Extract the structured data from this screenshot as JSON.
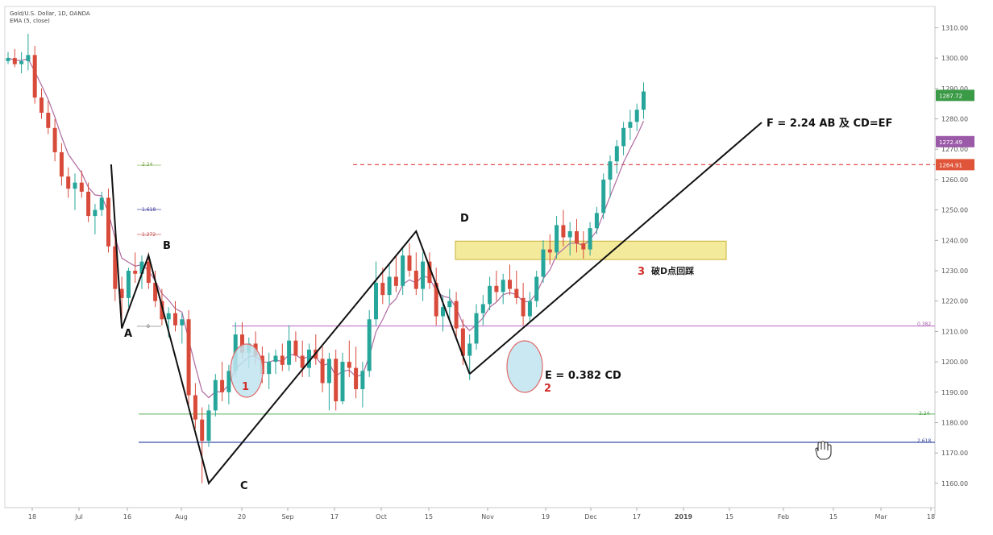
{
  "header": {
    "symbol_line": "Gold/U.S. Dollar, 1D, OANDA",
    "ema_line": "EMA (5, close)"
  },
  "colors": {
    "up": "#26a69a",
    "down": "#d84a3a",
    "ema": "#b06aa0",
    "pattern": "#111111",
    "zone_fill": "#f3ea9c",
    "zone_stroke": "#c9b23a",
    "red_dash": "#e05050",
    "pink_line": "#c98bd0",
    "green_line": "#7ac27a",
    "blue_line": "#4a5ab0",
    "circle_fill": "#bfe4ee",
    "circle_stroke": "#e06a6a"
  },
  "chart_data": {
    "type": "candlestick",
    "ylim": [
      1152,
      1317
    ],
    "y_ticks": [
      "1310.00",
      "1300.00",
      "1290.00",
      "1280.00",
      "1270.00",
      "1260.00",
      "1250.00",
      "1240.00",
      "1230.00",
      "1220.00",
      "1210.00",
      "1200.00",
      "1190.00",
      "1180.00",
      "1170.00",
      "1160.00"
    ],
    "x_ticks": [
      "18",
      "Jul",
      "16",
      "Aug",
      "20",
      "Sep",
      "17",
      "Oct",
      "15",
      "Nov",
      "19",
      "Dec",
      "17",
      "2019",
      "15",
      "Feb",
      "15",
      "Mar",
      "18"
    ],
    "price_badges": [
      {
        "value": 1287.72,
        "label": "1287.72",
        "color": "#3a9a45"
      },
      {
        "value": 1272.49,
        "label": "1272.49",
        "color": "#9b5aa8"
      },
      {
        "value": 1264.91,
        "label": "1264.91",
        "color": "#e0553a"
      }
    ],
    "levels": [
      {
        "name": "red-dash",
        "value": 1264.91,
        "style": "dashed"
      },
      {
        "name": "0.382",
        "label": "0.382",
        "value": 1211.8
      },
      {
        "name": "2.24",
        "label": "2.24",
        "value": 1182.8
      },
      {
        "name": "2.618",
        "label": "2.618",
        "value": 1173.5
      }
    ],
    "small_fib_labels": [
      "2.24",
      "1.618",
      "1.272",
      "0"
    ],
    "zone": {
      "low": 1235,
      "high": 1240
    },
    "pattern_points": [
      {
        "label": "A",
        "x_index": 17,
        "price": 1211
      },
      {
        "label": "B",
        "x_index": 21,
        "price": 1235
      },
      {
        "label": "C",
        "x_index": 30,
        "price": 1160
      },
      {
        "label": "D",
        "x_index": 61,
        "price": 1243
      },
      {
        "label": "E",
        "x_index": 69,
        "price": 1196
      },
      {
        "label": "F",
        "x_index": 100,
        "price": 1280
      }
    ],
    "extra_line": {
      "x_start_index": 13,
      "price_start": 1265
    },
    "annotations": {
      "f_label": "F = 2.24 AB 及 CD=EF",
      "e_label": "E = 0.382 CD",
      "marker1": "1",
      "marker2": "2",
      "marker3": "3",
      "d_retest": "破D点回踩"
    },
    "candles": [
      [
        1299,
        1302,
        1298,
        1300
      ],
      [
        1300,
        1303,
        1297,
        1298
      ],
      [
        1298,
        1302,
        1295,
        1299
      ],
      [
        1299,
        1308,
        1296,
        1301
      ],
      [
        1301,
        1304,
        1285,
        1287
      ],
      [
        1287,
        1290,
        1280,
        1282
      ],
      [
        1282,
        1286,
        1275,
        1277
      ],
      [
        1277,
        1280,
        1266,
        1269
      ],
      [
        1269,
        1272,
        1258,
        1261
      ],
      [
        1261,
        1264,
        1254,
        1257
      ],
      [
        1257,
        1262,
        1250,
        1259
      ],
      [
        1259,
        1263,
        1254,
        1256
      ],
      [
        1256,
        1259,
        1246,
        1248
      ],
      [
        1248,
        1252,
        1242,
        1250
      ],
      [
        1250,
        1256,
        1248,
        1254
      ],
      [
        1254,
        1257,
        1236,
        1238
      ],
      [
        1238,
        1242,
        1220,
        1224
      ],
      [
        1224,
        1228,
        1212,
        1221
      ],
      [
        1221,
        1231,
        1218,
        1230
      ],
      [
        1230,
        1236,
        1226,
        1229
      ],
      [
        1229,
        1235,
        1224,
        1233
      ],
      [
        1233,
        1236,
        1224,
        1226
      ],
      [
        1226,
        1230,
        1218,
        1220
      ],
      [
        1220,
        1224,
        1212,
        1214
      ],
      [
        1214,
        1218,
        1208,
        1216
      ],
      [
        1216,
        1220,
        1210,
        1212
      ],
      [
        1212,
        1216,
        1206,
        1214
      ],
      [
        1214,
        1217,
        1186,
        1189
      ],
      [
        1189,
        1193,
        1178,
        1181
      ],
      [
        1181,
        1185,
        1160,
        1174
      ],
      [
        1174,
        1186,
        1172,
        1184
      ],
      [
        1184,
        1196,
        1182,
        1194
      ],
      [
        1194,
        1200,
        1187,
        1190
      ],
      [
        1190,
        1199,
        1186,
        1197
      ],
      [
        1197,
        1213,
        1195,
        1209
      ],
      [
        1209,
        1213,
        1201,
        1203
      ],
      [
        1203,
        1208,
        1198,
        1206
      ],
      [
        1206,
        1210,
        1199,
        1202
      ],
      [
        1202,
        1205,
        1193,
        1196
      ],
      [
        1196,
        1203,
        1191,
        1200
      ],
      [
        1200,
        1204,
        1196,
        1202
      ],
      [
        1202,
        1206,
        1197,
        1199
      ],
      [
        1199,
        1212,
        1197,
        1207
      ],
      [
        1207,
        1210,
        1200,
        1202
      ],
      [
        1202,
        1207,
        1195,
        1198
      ],
      [
        1198,
        1206,
        1195,
        1204
      ],
      [
        1204,
        1209,
        1199,
        1201
      ],
      [
        1201,
        1205,
        1190,
        1193
      ],
      [
        1193,
        1203,
        1184,
        1201
      ],
      [
        1201,
        1204,
        1184,
        1187
      ],
      [
        1187,
        1203,
        1186,
        1200
      ],
      [
        1200,
        1207,
        1195,
        1198
      ],
      [
        1198,
        1205,
        1188,
        1191
      ],
      [
        1191,
        1200,
        1185,
        1197
      ],
      [
        1197,
        1217,
        1195,
        1214
      ],
      [
        1214,
        1233,
        1212,
        1226
      ],
      [
        1226,
        1231,
        1219,
        1222
      ],
      [
        1222,
        1232,
        1219,
        1228
      ],
      [
        1228,
        1235,
        1223,
        1225
      ],
      [
        1225,
        1238,
        1222,
        1235
      ],
      [
        1235,
        1239,
        1228,
        1230
      ],
      [
        1230,
        1236,
        1222,
        1224
      ],
      [
        1224,
        1236,
        1220,
        1233
      ],
      [
        1233,
        1236,
        1224,
        1226
      ],
      [
        1226,
        1231,
        1212,
        1215
      ],
      [
        1215,
        1222,
        1210,
        1218
      ],
      [
        1218,
        1224,
        1214,
        1220
      ],
      [
        1220,
        1223,
        1208,
        1211
      ],
      [
        1211,
        1214,
        1199,
        1202
      ],
      [
        1202,
        1209,
        1194,
        1206
      ],
      [
        1206,
        1219,
        1204,
        1216
      ],
      [
        1216,
        1222,
        1212,
        1219
      ],
      [
        1219,
        1228,
        1217,
        1225
      ],
      [
        1225,
        1230,
        1220,
        1223
      ],
      [
        1223,
        1229,
        1219,
        1227
      ],
      [
        1227,
        1232,
        1222,
        1224
      ],
      [
        1224,
        1230,
        1219,
        1221
      ],
      [
        1221,
        1226,
        1212,
        1215
      ],
      [
        1215,
        1223,
        1213,
        1220
      ],
      [
        1220,
        1230,
        1218,
        1228
      ],
      [
        1228,
        1240,
        1226,
        1237
      ],
      [
        1237,
        1242,
        1232,
        1236
      ],
      [
        1236,
        1248,
        1234,
        1245
      ],
      [
        1245,
        1250,
        1238,
        1241
      ],
      [
        1241,
        1246,
        1235,
        1243
      ],
      [
        1243,
        1247,
        1236,
        1239
      ],
      [
        1239,
        1243,
        1234,
        1237
      ],
      [
        1237,
        1246,
        1235,
        1244
      ],
      [
        1244,
        1251,
        1242,
        1249
      ],
      [
        1249,
        1262,
        1247,
        1260
      ],
      [
        1260,
        1268,
        1254,
        1266
      ],
      [
        1266,
        1273,
        1262,
        1271
      ],
      [
        1271,
        1279,
        1268,
        1277
      ],
      [
        1277,
        1283,
        1273,
        1279
      ],
      [
        1279,
        1285,
        1276,
        1283
      ],
      [
        1283,
        1292,
        1280,
        1289
      ]
    ]
  }
}
